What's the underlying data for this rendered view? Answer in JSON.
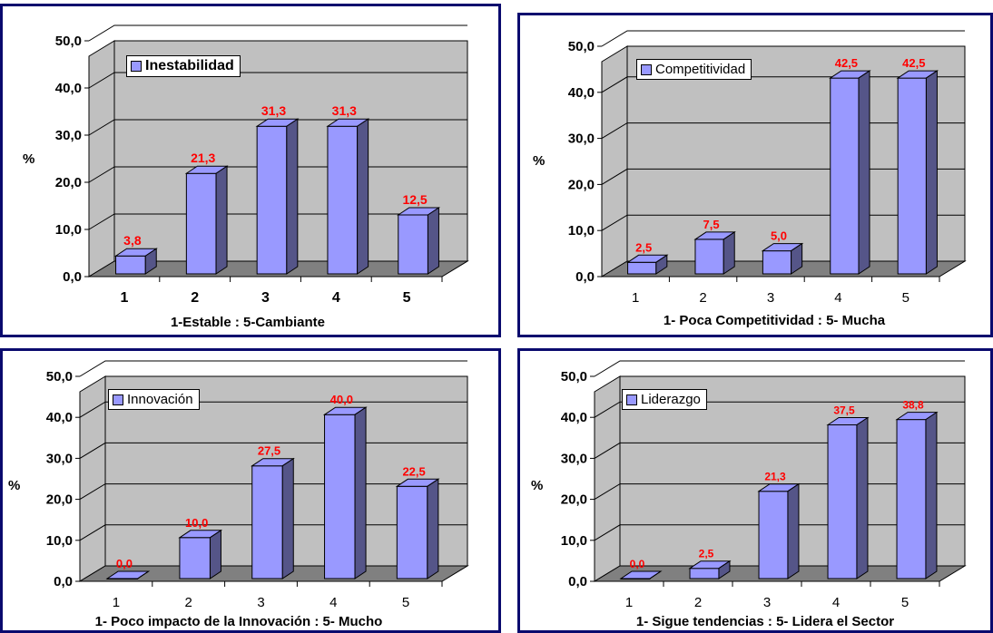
{
  "chart_data": [
    {
      "type": "bar",
      "categories": [
        "1",
        "2",
        "3",
        "4",
        "5"
      ],
      "series": [
        {
          "name": "Inestabilidad",
          "values": [
            3.8,
            21.3,
            31.3,
            31.3,
            12.5
          ]
        }
      ],
      "data_labels": [
        "3,8",
        "21,3",
        "31,3",
        "31,3",
        "12,5"
      ],
      "xlabel": "1-Estable :  5-Cambiante",
      "ylabel": "%",
      "yticks": [
        "0,0",
        "10,0",
        "20,0",
        "30,0",
        "40,0",
        "50,0"
      ],
      "ylim": [
        0,
        50
      ],
      "grid": true,
      "legend": "top-left",
      "bar_color": "#9999ff",
      "label_color": "#ff0000"
    },
    {
      "type": "bar",
      "categories": [
        "1",
        "2",
        "3",
        "4",
        "5"
      ],
      "series": [
        {
          "name": "Competitividad",
          "values": [
            2.5,
            7.5,
            5.0,
            42.5,
            42.5
          ]
        }
      ],
      "data_labels": [
        "2,5",
        "7,5",
        "5,0",
        "42,5",
        "42,5"
      ],
      "xlabel": "1- Poca Competitividad :  5- Mucha",
      "ylabel": "%",
      "yticks": [
        "0,0",
        "10,0",
        "20,0",
        "30,0",
        "40,0",
        "50,0"
      ],
      "ylim": [
        0,
        50
      ],
      "grid": true,
      "legend": "top-left",
      "bar_color": "#9999ff",
      "label_color": "#ff0000"
    },
    {
      "type": "bar",
      "categories": [
        "1",
        "2",
        "3",
        "4",
        "5"
      ],
      "series": [
        {
          "name": "Innovación",
          "values": [
            0.0,
            10.0,
            27.5,
            40.0,
            22.5
          ]
        }
      ],
      "data_labels": [
        "0,0",
        "10,0",
        "27,5",
        "40,0",
        "22,5"
      ],
      "xlabel": "1- Poco impacto de la Innovación :  5- Mucho",
      "ylabel": "%",
      "yticks": [
        "0,0",
        "10,0",
        "20,0",
        "30,0",
        "40,0",
        "50,0"
      ],
      "ylim": [
        0,
        50
      ],
      "grid": true,
      "legend": "top-left",
      "bar_color": "#9999ff",
      "label_color": "#ff0000"
    },
    {
      "type": "bar",
      "categories": [
        "1",
        "2",
        "3",
        "4",
        "5"
      ],
      "series": [
        {
          "name": "Liderazgo",
          "values": [
            0.0,
            2.5,
            21.3,
            37.5,
            38.8
          ]
        }
      ],
      "data_labels": [
        "0,0",
        "2,5",
        "21,3",
        "37,5",
        "38,8"
      ],
      "xlabel": "1- Sigue tendencias :  5- Lidera el Sector",
      "ylabel": "%",
      "yticks": [
        "0,0",
        "10,0",
        "20,0",
        "30,0",
        "40,0",
        "50,0"
      ],
      "ylim": [
        0,
        50
      ],
      "grid": true,
      "legend": "top-left",
      "bar_color": "#9999ff",
      "label_color": "#ff0000"
    }
  ]
}
